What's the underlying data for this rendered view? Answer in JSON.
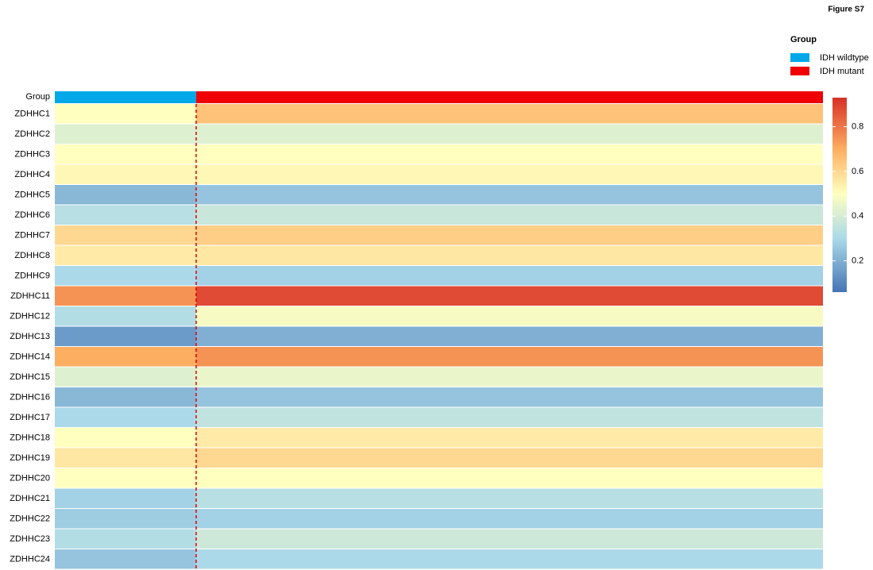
{
  "chart_data": {
    "type": "heatmap",
    "figure_label": "Figure S7",
    "group_row_label": "Group",
    "legend_title": "Group",
    "groups": [
      {
        "name": "IDH wildtype",
        "color": "#00a8e8"
      },
      {
        "name": "IDH mutant",
        "color": "#f00000"
      }
    ],
    "rows": [
      "ZDHHC1",
      "ZDHHC2",
      "ZDHHC3",
      "ZDHHC4",
      "ZDHHC5",
      "ZDHHC6",
      "ZDHHC7",
      "ZDHHC8",
      "ZDHHC9",
      "ZDHHC11",
      "ZDHHC12",
      "ZDHHC13",
      "ZDHHC14",
      "ZDHHC15",
      "ZDHHC16",
      "ZDHHC17",
      "ZDHHC18",
      "ZDHHC19",
      "ZDHHC20",
      "ZDHHC21",
      "ZDHHC22",
      "ZDHHC23",
      "ZDHHC24"
    ],
    "values": [
      [
        0.5,
        0.65
      ],
      [
        0.42,
        0.42
      ],
      [
        0.5,
        0.5
      ],
      [
        0.52,
        0.52
      ],
      [
        0.22,
        0.25
      ],
      [
        0.33,
        0.37
      ],
      [
        0.6,
        0.62
      ],
      [
        0.55,
        0.56
      ],
      [
        0.3,
        0.28
      ],
      [
        0.75,
        0.88
      ],
      [
        0.32,
        0.48
      ],
      [
        0.15,
        0.2
      ],
      [
        0.7,
        0.75
      ],
      [
        0.42,
        0.45
      ],
      [
        0.22,
        0.25
      ],
      [
        0.3,
        0.35
      ],
      [
        0.5,
        0.55
      ],
      [
        0.56,
        0.6
      ],
      [
        0.5,
        0.5
      ],
      [
        0.28,
        0.33
      ],
      [
        0.27,
        0.28
      ],
      [
        0.32,
        0.38
      ],
      [
        0.25,
        0.3
      ]
    ],
    "colorscale": [
      {
        "value": 0.06,
        "color": "#4575b4"
      },
      {
        "value": 0.3,
        "color": "#abd9e9"
      },
      {
        "value": 0.5,
        "color": "#ffffbf"
      },
      {
        "value": 0.7,
        "color": "#fdae61"
      },
      {
        "value": 0.93,
        "color": "#d73027"
      }
    ],
    "clim": [
      0.06,
      0.93
    ],
    "cticks": [
      0.2,
      0.4,
      0.6,
      0.8
    ]
  }
}
